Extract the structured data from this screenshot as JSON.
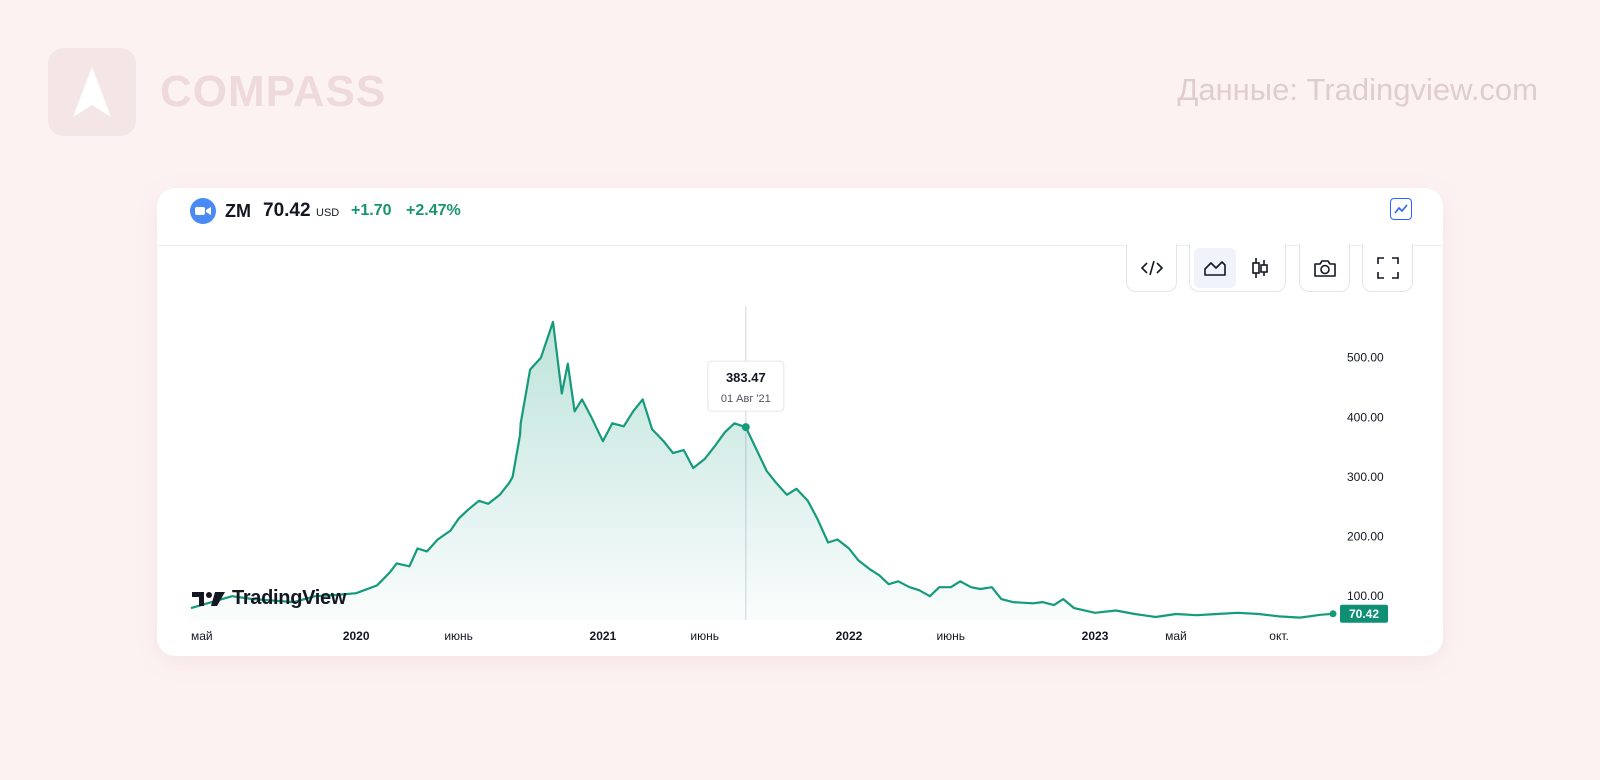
{
  "brand": {
    "name": "COMPASS",
    "logo_icon": "compass-arrow-icon"
  },
  "source_note": "Данные: Tradingview.com",
  "ticker": {
    "symbol": "ZM",
    "price": "70.42",
    "currency": "USD",
    "change": "+1.70",
    "change_pct": "+2.47%",
    "icon": "camera-icon",
    "accent": "#16956f"
  },
  "toolbar": {
    "embed_icon": "code-icon",
    "area_icon": "area-chart-icon",
    "candles_icon": "candlestick-icon",
    "snapshot_icon": "camera-icon",
    "fullscreen_icon": "fullscreen-icon",
    "active": "area"
  },
  "watermark": {
    "text": "TradingView"
  },
  "tooltip": {
    "value": "383.47",
    "date": "01 Авг '21"
  },
  "chart_data": {
    "type": "area",
    "series": [
      {
        "color": "#159a7c",
        "points": [
          [
            "2019-05",
            80
          ],
          [
            "2019-07",
            100
          ],
          [
            "2019-08",
            95
          ],
          [
            "2019-10",
            90
          ],
          [
            "2019-11",
            100
          ],
          [
            "2019-12",
            102
          ],
          [
            "2020-01",
            105
          ],
          [
            "2020-02",
            118
          ],
          [
            "2020-02-20",
            140
          ],
          [
            "2020-03",
            155
          ],
          [
            "2020-03-20",
            150
          ],
          [
            "2020-04",
            180
          ],
          [
            "2020-04-15",
            175
          ],
          [
            "2020-05",
            195
          ],
          [
            "2020-05-20",
            210
          ],
          [
            "2020-06",
            230
          ],
          [
            "2020-06-15",
            245
          ],
          [
            "2020-07",
            260
          ],
          [
            "2020-07-15",
            255
          ],
          [
            "2020-08",
            270
          ],
          [
            "2020-08-15",
            290
          ],
          [
            "2020-08-20",
            300
          ],
          [
            "2020-08-31",
            370
          ],
          [
            "2020-09",
            390
          ],
          [
            "2020-09-15",
            480
          ],
          [
            "2020-10",
            500
          ],
          [
            "2020-10-19",
            560
          ],
          [
            "2020-11",
            440
          ],
          [
            "2020-11-10",
            490
          ],
          [
            "2020-11-20",
            410
          ],
          [
            "2020-12",
            430
          ],
          [
            "2020-12-15",
            400
          ],
          [
            "2021-01",
            360
          ],
          [
            "2021-01-15",
            390
          ],
          [
            "2021-02",
            385
          ],
          [
            "2021-02-15",
            410
          ],
          [
            "2021-03",
            430
          ],
          [
            "2021-03-15",
            380
          ],
          [
            "2021-04",
            360
          ],
          [
            "2021-04-15",
            340
          ],
          [
            "2021-05",
            345
          ],
          [
            "2021-05-15",
            315
          ],
          [
            "2021-06",
            330
          ],
          [
            "2021-06-15",
            350
          ],
          [
            "2021-07",
            375
          ],
          [
            "2021-07-15",
            390
          ],
          [
            "2021-08",
            383.47
          ],
          [
            "2021-08-15",
            350
          ],
          [
            "2021-09",
            310
          ],
          [
            "2021-09-15",
            290
          ],
          [
            "2021-10",
            270
          ],
          [
            "2021-10-15",
            280
          ],
          [
            "2021-11",
            260
          ],
          [
            "2021-11-15",
            230
          ],
          [
            "2021-12",
            190
          ],
          [
            "2021-12-15",
            195
          ],
          [
            "2022-01",
            180
          ],
          [
            "2022-01-15",
            160
          ],
          [
            "2022-02",
            145
          ],
          [
            "2022-02-15",
            135
          ],
          [
            "2022-03",
            120
          ],
          [
            "2022-03-15",
            125
          ],
          [
            "2022-04",
            115
          ],
          [
            "2022-04-15",
            110
          ],
          [
            "2022-05",
            100
          ],
          [
            "2022-05-15",
            115
          ],
          [
            "2022-06",
            115
          ],
          [
            "2022-06-15",
            125
          ],
          [
            "2022-07",
            115
          ],
          [
            "2022-07-15",
            112
          ],
          [
            "2022-08",
            115
          ],
          [
            "2022-08-15",
            95
          ],
          [
            "2022-09",
            90
          ],
          [
            "2022-10",
            88
          ],
          [
            "2022-10-15",
            90
          ],
          [
            "2022-11",
            85
          ],
          [
            "2022-11-15",
            95
          ],
          [
            "2022-12",
            80
          ],
          [
            "2023-01",
            72
          ],
          [
            "2023-02",
            76
          ],
          [
            "2023-03",
            70
          ],
          [
            "2023-04",
            65
          ],
          [
            "2023-05",
            70
          ],
          [
            "2023-06",
            68
          ],
          [
            "2023-07",
            70
          ],
          [
            "2023-08",
            72
          ],
          [
            "2023-09",
            70
          ],
          [
            "2023-10",
            66
          ],
          [
            "2023-11",
            64
          ],
          [
            "2023-12",
            68.7
          ],
          [
            "2023-12-20",
            70.42
          ]
        ]
      }
    ],
    "x_tick_labels": [
      "май",
      "2020",
      "июнь",
      "2021",
      "июнь",
      "2022",
      "июнь",
      "2023",
      "май",
      "окт."
    ],
    "x_tick_dates": [
      "2019-05",
      "2020-01",
      "2020-06",
      "2021-01",
      "2021-06",
      "2022-01",
      "2022-06",
      "2023-01",
      "2023-05",
      "2023-10"
    ],
    "y_ticks": [
      100,
      200,
      300,
      400,
      500
    ],
    "y_tick_labels": [
      "100.00",
      "200.00",
      "300.00",
      "400.00",
      "500.00"
    ],
    "ylim": [
      60,
      580
    ],
    "last_value_label": "70.42",
    "highlight": {
      "x": "2021-08",
      "y": 383.47
    },
    "grid": false,
    "legend": "none"
  }
}
